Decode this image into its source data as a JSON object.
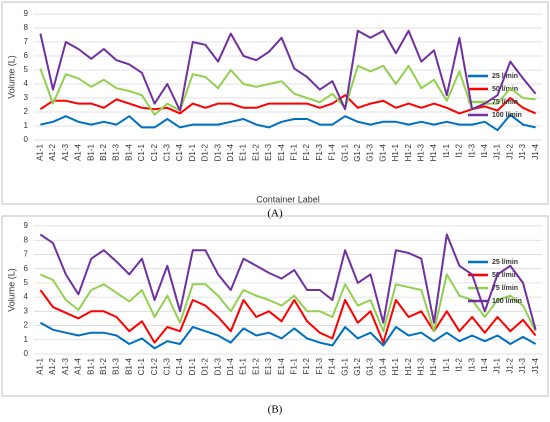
{
  "chart_data": [
    {
      "type": "line",
      "caption": "(A)",
      "y_label": "Volume (L)",
      "x_label": "Container Label",
      "categories": [
        "A1-1",
        "A1-2",
        "A1-3",
        "A1-4",
        "B1-1",
        "B1-2",
        "B1-3",
        "B1-4",
        "C1-1",
        "C1-2",
        "C1-3",
        "C1-4",
        "D1-1",
        "D1-2",
        "D1-3",
        "D1-4",
        "E1-1",
        "E1-2",
        "E1-3",
        "E1-4",
        "F1-1",
        "F1-2",
        "F1-3",
        "F1-4",
        "G1-1",
        "G1-2",
        "G1-3",
        "G1-4",
        "H1-1",
        "H1-2",
        "H1-3",
        "H1-4",
        "I1-1",
        "I1-2",
        "I1-3",
        "I1-4",
        "J1-1",
        "J1-2",
        "J1-3",
        "J1-4"
      ],
      "ylim": [
        0,
        9
      ],
      "yticks": [
        0,
        1,
        2,
        3,
        4,
        5,
        6,
        7,
        8,
        9
      ],
      "grid": true,
      "legend": "right",
      "series": [
        {
          "name": "25 l/min",
          "color": "#0070c0",
          "values": [
            1.1,
            1.3,
            1.7,
            1.3,
            1.1,
            1.3,
            1.1,
            1.7,
            0.9,
            0.9,
            1.5,
            0.9,
            1.1,
            1.1,
            1.1,
            1.3,
            1.5,
            1.1,
            0.9,
            1.3,
            1.5,
            1.5,
            1.1,
            1.1,
            1.7,
            1.3,
            1.1,
            1.3,
            1.3,
            1.1,
            1.3,
            1.1,
            1.3,
            1.1,
            1.1,
            1.3,
            0.7,
            1.8,
            1.1,
            0.9
          ]
        },
        {
          "name": "50 l/min",
          "color": "#ff0000",
          "values": [
            2.2,
            2.8,
            2.8,
            2.6,
            2.6,
            2.3,
            2.9,
            2.6,
            2.3,
            2.2,
            2.3,
            1.9,
            2.6,
            2.3,
            2.6,
            2.6,
            2.3,
            2.3,
            2.6,
            2.6,
            2.6,
            2.6,
            2.3,
            2.6,
            3.2,
            2.3,
            2.6,
            2.8,
            2.3,
            2.6,
            2.3,
            2.6,
            2.3,
            1.9,
            2.2,
            2.4,
            2.1,
            3.0,
            2.3,
            1.9
          ]
        },
        {
          "name": "75 l/min",
          "color": "#92d050",
          "values": [
            5.1,
            2.6,
            4.7,
            4.4,
            3.8,
            4.3,
            3.7,
            3.5,
            3.2,
            1.8,
            2.6,
            2.1,
            4.7,
            4.5,
            3.7,
            5.0,
            4.0,
            3.8,
            4.0,
            4.2,
            3.3,
            3.0,
            2.7,
            3.3,
            2.3,
            5.3,
            4.9,
            5.3,
            4.0,
            5.3,
            3.7,
            4.3,
            2.8,
            4.9,
            2.2,
            2.6,
            2.6,
            3.7,
            3.0,
            2.9
          ]
        },
        {
          "name": "100 l/min",
          "color": "#7030a0",
          "values": [
            7.6,
            3.6,
            7.0,
            6.5,
            5.8,
            6.5,
            5.7,
            5.4,
            4.8,
            2.6,
            4.0,
            2.1,
            7.0,
            6.8,
            5.6,
            7.6,
            6.0,
            5.7,
            6.3,
            7.3,
            5.1,
            4.5,
            3.6,
            4.2,
            2.2,
            7.8,
            7.3,
            7.8,
            6.2,
            7.8,
            5.6,
            6.4,
            3.2,
            7.3,
            2.2,
            2.6,
            3.2,
            5.6,
            4.4,
            3.3
          ]
        }
      ]
    },
    {
      "type": "line",
      "caption": "(B)",
      "y_label": "Volume (L)",
      "categories": [
        "A1-1",
        "A1-2",
        "A1-3",
        "A1-4",
        "B1-1",
        "B1-2",
        "B1-3",
        "B1-4",
        "C1-1",
        "C1-2",
        "C1-3",
        "C1-4",
        "D1-1",
        "D1-2",
        "D1-3",
        "D1-4",
        "E1-1",
        "E1-2",
        "E1-3",
        "E1-4",
        "F1-1",
        "F1-2",
        "F1-3",
        "F1-4",
        "G1-1",
        "G1-2",
        "G1-3",
        "G1-4",
        "H1-1",
        "H1-2",
        "H1-3",
        "H1-4",
        "I1-1",
        "I1-2",
        "I1-3",
        "I1-4",
        "J1-1",
        "J1-2",
        "J1-3",
        "J1-4"
      ],
      "ylim": [
        0,
        9
      ],
      "yticks": [
        0,
        1,
        2,
        3,
        4,
        5,
        6,
        7,
        8,
        9
      ],
      "grid": true,
      "legend": "right",
      "series": [
        {
          "name": "25 l/min",
          "color": "#0070c0",
          "values": [
            2.2,
            1.7,
            1.5,
            1.3,
            1.5,
            1.5,
            1.3,
            0.7,
            1.1,
            0.4,
            0.9,
            0.7,
            1.9,
            1.6,
            1.3,
            0.8,
            1.8,
            1.3,
            1.5,
            1.1,
            1.8,
            1.1,
            0.8,
            0.6,
            1.9,
            1.1,
            1.5,
            0.6,
            1.9,
            1.3,
            1.5,
            0.9,
            1.5,
            0.9,
            1.3,
            0.9,
            1.3,
            0.7,
            1.2,
            0.7
          ]
        },
        {
          "name": "50 l/min",
          "color": "#ff0000",
          "values": [
            4.5,
            3.3,
            2.9,
            2.5,
            3.0,
            3.0,
            2.6,
            1.6,
            2.3,
            0.8,
            1.9,
            1.6,
            3.8,
            3.4,
            2.6,
            1.6,
            3.8,
            2.6,
            3.0,
            2.3,
            3.8,
            2.3,
            1.5,
            1.1,
            3.8,
            2.2,
            3.0,
            0.8,
            3.8,
            2.6,
            3.0,
            1.6,
            3.0,
            1.6,
            2.6,
            1.5,
            2.6,
            1.6,
            2.4,
            1.3
          ]
        },
        {
          "name": "75 l/min",
          "color": "#92d050",
          "values": [
            5.6,
            5.2,
            3.8,
            3.1,
            4.5,
            4.9,
            4.3,
            3.7,
            4.5,
            2.6,
            4.1,
            2.2,
            4.9,
            4.9,
            4.1,
            3.0,
            4.5,
            4.1,
            3.8,
            3.4,
            4.1,
            3.0,
            3.0,
            2.6,
            4.9,
            3.4,
            3.8,
            1.6,
            4.9,
            4.7,
            4.5,
            1.6,
            5.6,
            4.1,
            3.8,
            2.6,
            3.8,
            4.1,
            3.4,
            1.6
          ]
        },
        {
          "name": "100 l/min",
          "color": "#7030a0",
          "values": [
            8.4,
            7.8,
            5.6,
            4.2,
            6.7,
            7.3,
            6.5,
            5.6,
            6.7,
            3.8,
            6.2,
            3.0,
            7.3,
            7.3,
            5.6,
            4.5,
            6.7,
            6.2,
            5.7,
            5.3,
            5.9,
            4.5,
            4.5,
            3.8,
            7.3,
            5.0,
            5.6,
            2.2,
            7.3,
            7.1,
            6.7,
            2.2,
            8.4,
            6.2,
            5.6,
            3.0,
            5.6,
            6.2,
            5.0,
            1.7
          ]
        }
      ]
    }
  ]
}
